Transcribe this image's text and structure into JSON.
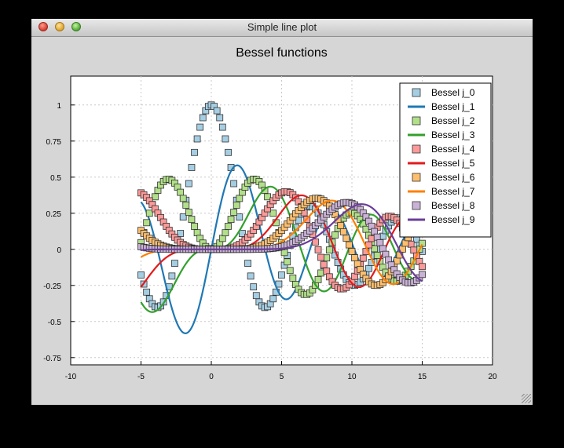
{
  "window": {
    "title": "Simple line plot"
  },
  "chart_data": {
    "type": "line",
    "title": "Bessel functions",
    "xlabel": "",
    "ylabel": "",
    "xlim": [
      -10,
      20
    ],
    "ylim": [
      -0.8,
      1.2
    ],
    "xticks": [
      "-10",
      "-5",
      "0",
      "5",
      "10",
      "15",
      "20"
    ],
    "yticks": [
      "-0.75",
      "-0.5",
      "-0.25",
      "0",
      "0.25",
      "0.5",
      "0.75",
      "1"
    ],
    "grid": true,
    "legend_position": "top-right",
    "x_range_data": [
      -5,
      15
    ],
    "series": [
      {
        "name": "Bessel j_0",
        "style": "markers",
        "color": "#a6cee3"
      },
      {
        "name": "Bessel j_1",
        "style": "line",
        "color": "#1f78b4"
      },
      {
        "name": "Bessel j_2",
        "style": "markers",
        "color": "#b2df8a"
      },
      {
        "name": "Bessel j_3",
        "style": "line",
        "color": "#33a02c"
      },
      {
        "name": "Bessel j_4",
        "style": "markers",
        "color": "#fb9a99"
      },
      {
        "name": "Bessel j_5",
        "style": "line",
        "color": "#e31a1c"
      },
      {
        "name": "Bessel j_6",
        "style": "markers",
        "color": "#fdbf6f"
      },
      {
        "name": "Bessel j_7",
        "style": "line",
        "color": "#ff7f00"
      },
      {
        "name": "Bessel j_8",
        "style": "markers",
        "color": "#cab2d6"
      },
      {
        "name": "Bessel j_9",
        "style": "line",
        "color": "#6a3d9a"
      }
    ]
  }
}
